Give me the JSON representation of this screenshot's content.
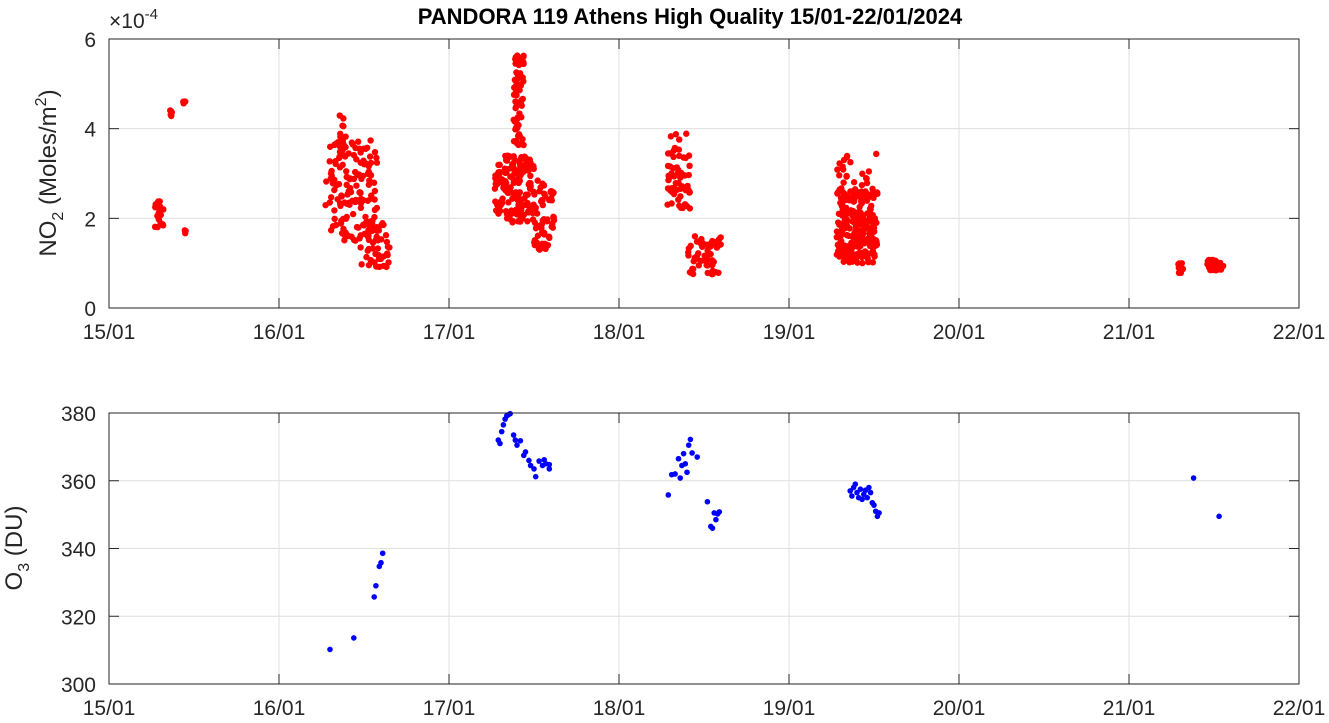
{
  "chart_data": [
    {
      "type": "scatter",
      "title": "PANDORA 119 Athens High Quality 15/01-22/01/2024",
      "ylabel_main": "NO",
      "ylabel_sub": "2",
      "ylabel_rest": " (Moles/m",
      "ylabel_sup": "2",
      "ylabel_end": ")",
      "exponent_base": "×10",
      "exponent_power": "-4",
      "xlim": [
        15,
        22
      ],
      "ylim": [
        0,
        6
      ],
      "xticks": [
        "15/01",
        "16/01",
        "17/01",
        "18/01",
        "19/01",
        "20/01",
        "21/01",
        "22/01"
      ],
      "yticks": [
        "0",
        "2",
        "4",
        "6"
      ],
      "grid": true,
      "color": "#ff0000",
      "clusters": [
        {
          "x": [
            15.27,
            15.32
          ],
          "y": [
            1.8,
            2.4
          ],
          "n": 18
        },
        {
          "x": [
            15.36,
            15.37
          ],
          "y": [
            4.25,
            4.45
          ],
          "n": 5
        },
        {
          "x": [
            15.43,
            15.45
          ],
          "y": [
            4.55,
            4.62
          ],
          "n": 5
        },
        {
          "x": [
            15.43,
            15.47
          ],
          "y": [
            1.5,
            1.75
          ],
          "n": 3
        },
        {
          "x": [
            16.27,
            16.58
          ],
          "y": [
            1.5,
            3.9
          ],
          "n": 150
        },
        {
          "x": [
            16.35,
            16.38
          ],
          "y": [
            3.6,
            4.6
          ],
          "n": 10
        },
        {
          "x": [
            16.48,
            16.65
          ],
          "y": [
            0.9,
            1.9
          ],
          "n": 40
        },
        {
          "x": [
            17.27,
            17.5
          ],
          "y": [
            1.9,
            3.4
          ],
          "n": 160
        },
        {
          "x": [
            17.38,
            17.44
          ],
          "y": [
            3.6,
            5.65
          ],
          "n": 60
        },
        {
          "x": [
            17.5,
            17.62
          ],
          "y": [
            1.3,
            2.9
          ],
          "n": 60
        },
        {
          "x": [
            18.28,
            18.42
          ],
          "y": [
            2.2,
            3.9
          ],
          "n": 60
        },
        {
          "x": [
            18.4,
            18.6
          ],
          "y": [
            0.75,
            1.6
          ],
          "n": 55
        },
        {
          "x": [
            19.28,
            19.52
          ],
          "y": [
            1.0,
            2.6
          ],
          "n": 230
        },
        {
          "x": [
            19.28,
            19.52
          ],
          "y": [
            2.6,
            3.45
          ],
          "n": 25
        },
        {
          "x": [
            21.29,
            21.32
          ],
          "y": [
            0.78,
            1.0
          ],
          "n": 8
        },
        {
          "x": [
            21.46,
            21.56
          ],
          "y": [
            0.82,
            1.08
          ],
          "n": 45
        }
      ]
    },
    {
      "type": "scatter",
      "ylabel_main": "O",
      "ylabel_sub": "3",
      "ylabel_rest": " (DU)",
      "xlim": [
        15,
        22
      ],
      "ylim": [
        300,
        380
      ],
      "xticks": [
        "15/01",
        "16/01",
        "17/01",
        "18/01",
        "19/01",
        "20/01",
        "21/01",
        "22/01"
      ],
      "yticks": [
        "300",
        "320",
        "340",
        "360",
        "380"
      ],
      "grid": true,
      "color": "#0000ff",
      "points": [
        [
          16.3,
          310.2
        ],
        [
          16.44,
          313.6
        ],
        [
          16.56,
          325.7
        ],
        [
          16.57,
          329
        ],
        [
          16.59,
          334.7
        ],
        [
          16.6,
          335.8
        ],
        [
          16.61,
          338.6
        ],
        [
          17.29,
          372
        ],
        [
          17.3,
          371
        ],
        [
          17.31,
          374.5
        ],
        [
          17.32,
          376.5
        ],
        [
          17.33,
          378.2
        ],
        [
          17.34,
          379.2
        ],
        [
          17.35,
          379.5
        ],
        [
          17.36,
          379.8
        ],
        [
          17.38,
          373.5
        ],
        [
          17.39,
          372
        ],
        [
          17.4,
          370.5
        ],
        [
          17.42,
          371.8
        ],
        [
          17.44,
          367.5
        ],
        [
          17.45,
          368.5
        ],
        [
          17.47,
          366
        ],
        [
          17.48,
          364.5
        ],
        [
          17.5,
          363.5
        ],
        [
          17.51,
          361.2
        ],
        [
          17.53,
          365.8
        ],
        [
          17.55,
          364.5
        ],
        [
          17.56,
          366.2
        ],
        [
          17.57,
          365
        ],
        [
          17.59,
          363.5
        ],
        [
          17.59,
          364.8
        ],
        [
          18.29,
          355.8
        ],
        [
          18.31,
          361.8
        ],
        [
          18.33,
          362
        ],
        [
          18.35,
          366.5
        ],
        [
          18.36,
          360.8
        ],
        [
          18.37,
          364.5
        ],
        [
          18.38,
          368
        ],
        [
          18.39,
          365
        ],
        [
          18.4,
          362.5
        ],
        [
          18.41,
          370.5
        ],
        [
          18.42,
          372.2
        ],
        [
          18.43,
          368.2
        ],
        [
          18.46,
          367
        ],
        [
          18.52,
          353.8
        ],
        [
          18.54,
          346.5
        ],
        [
          18.55,
          346
        ],
        [
          18.56,
          350.5
        ],
        [
          18.58,
          350.2
        ],
        [
          18.59,
          350.8
        ],
        [
          18.57,
          348.5
        ],
        [
          19.36,
          357
        ],
        [
          19.37,
          355.5
        ],
        [
          19.38,
          358
        ],
        [
          19.39,
          359
        ],
        [
          19.4,
          356.5
        ],
        [
          19.41,
          355
        ],
        [
          19.42,
          357.5
        ],
        [
          19.43,
          354.5
        ],
        [
          19.44,
          356
        ],
        [
          19.45,
          357.2
        ],
        [
          19.46,
          355
        ],
        [
          19.47,
          358
        ],
        [
          19.48,
          356.5
        ],
        [
          19.49,
          353.5
        ],
        [
          19.5,
          352.8
        ],
        [
          19.51,
          351
        ],
        [
          19.52,
          349.5
        ],
        [
          19.53,
          350.5
        ],
        [
          21.38,
          360.8
        ],
        [
          21.53,
          349.5
        ]
      ]
    }
  ]
}
